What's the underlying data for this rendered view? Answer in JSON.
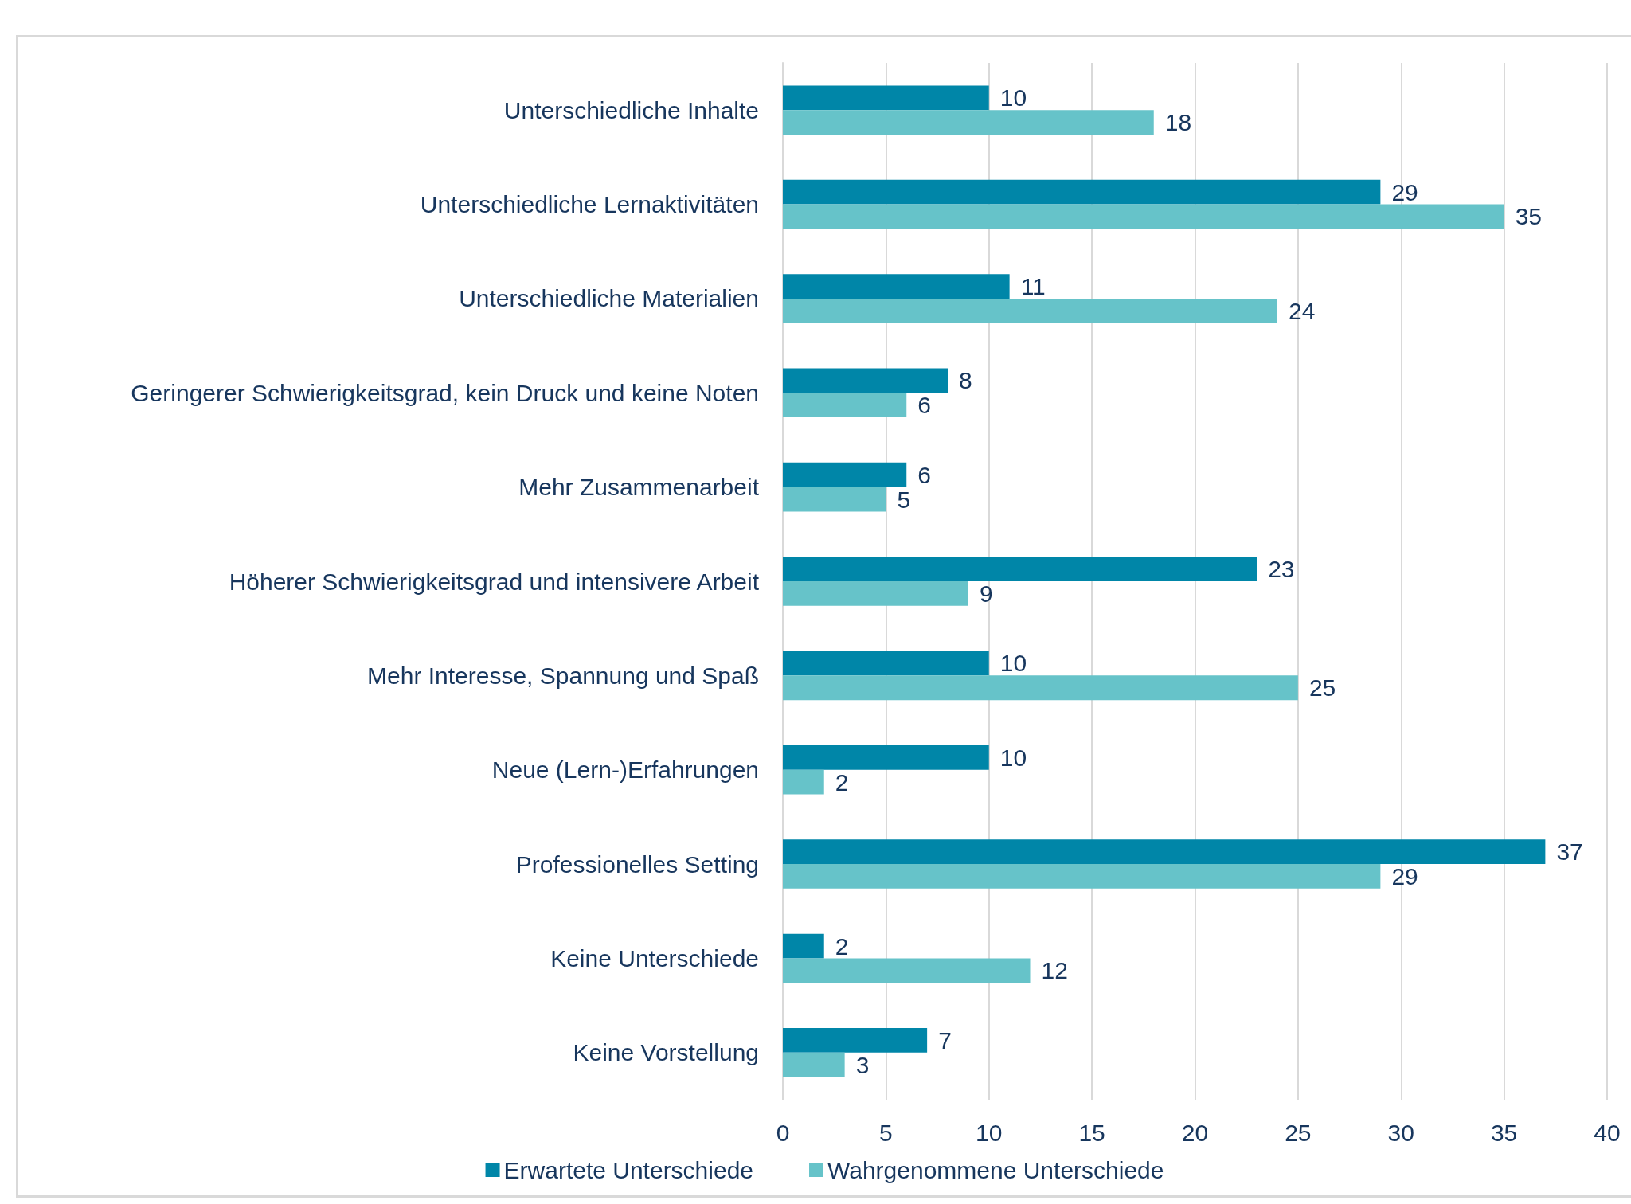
{
  "chart_data": {
    "type": "bar",
    "orientation": "horizontal",
    "categories": [
      "Unterschiedliche Inhalte",
      "Unterschiedliche Lernaktivitäten",
      "Unterschiedliche Materialien",
      "Geringerer Schwierigkeitsgrad, kein Druck und keine Noten",
      "Mehr Zusammenarbeit",
      "Höherer Schwierigkeitsgrad und intensivere Arbeit",
      "Mehr Interesse, Spannung und Spaß",
      "Neue (Lern-)Erfahrungen",
      "Professionelles Setting",
      "Keine Unterschiede",
      "Keine Vorstellung"
    ],
    "series": [
      {
        "name": "Erwartete Unterschiede",
        "color": "#0086a8",
        "values": [
          10,
          29,
          11,
          8,
          6,
          23,
          10,
          10,
          37,
          2,
          7
        ]
      },
      {
        "name": "Wahrgenommene Unterschiede",
        "color": "#66c3c9",
        "values": [
          18,
          35,
          24,
          6,
          5,
          9,
          25,
          2,
          29,
          12,
          3
        ]
      }
    ],
    "xlim": [
      0,
      40
    ],
    "xticks": [
      0,
      5,
      10,
      15,
      20,
      25,
      30,
      35,
      40
    ],
    "grid": "x",
    "legend": "bottom",
    "data_labels": true
  }
}
